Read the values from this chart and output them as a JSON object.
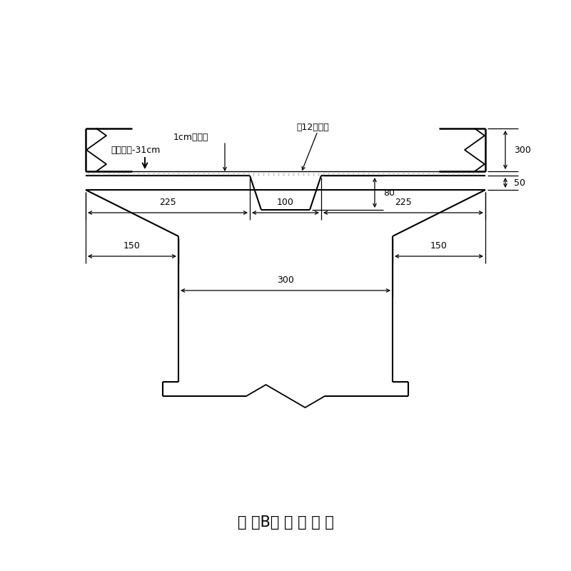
{
  "title": "节 点B结 构 示 意 图",
  "title_fontsize": 15,
  "background_color": "#ffffff",
  "line_color": "#000000",
  "annotations": {
    "mortar": "1cm砂浆层",
    "rebar": "\u000412加固筋",
    "elev": "顶面标高-31cm",
    "d300r": "300",
    "d80": "80",
    "d50": "50",
    "d225l": "225",
    "d100": "100",
    "d225r": "225",
    "d150l": "150",
    "d150r": "150",
    "d300b": "300"
  }
}
